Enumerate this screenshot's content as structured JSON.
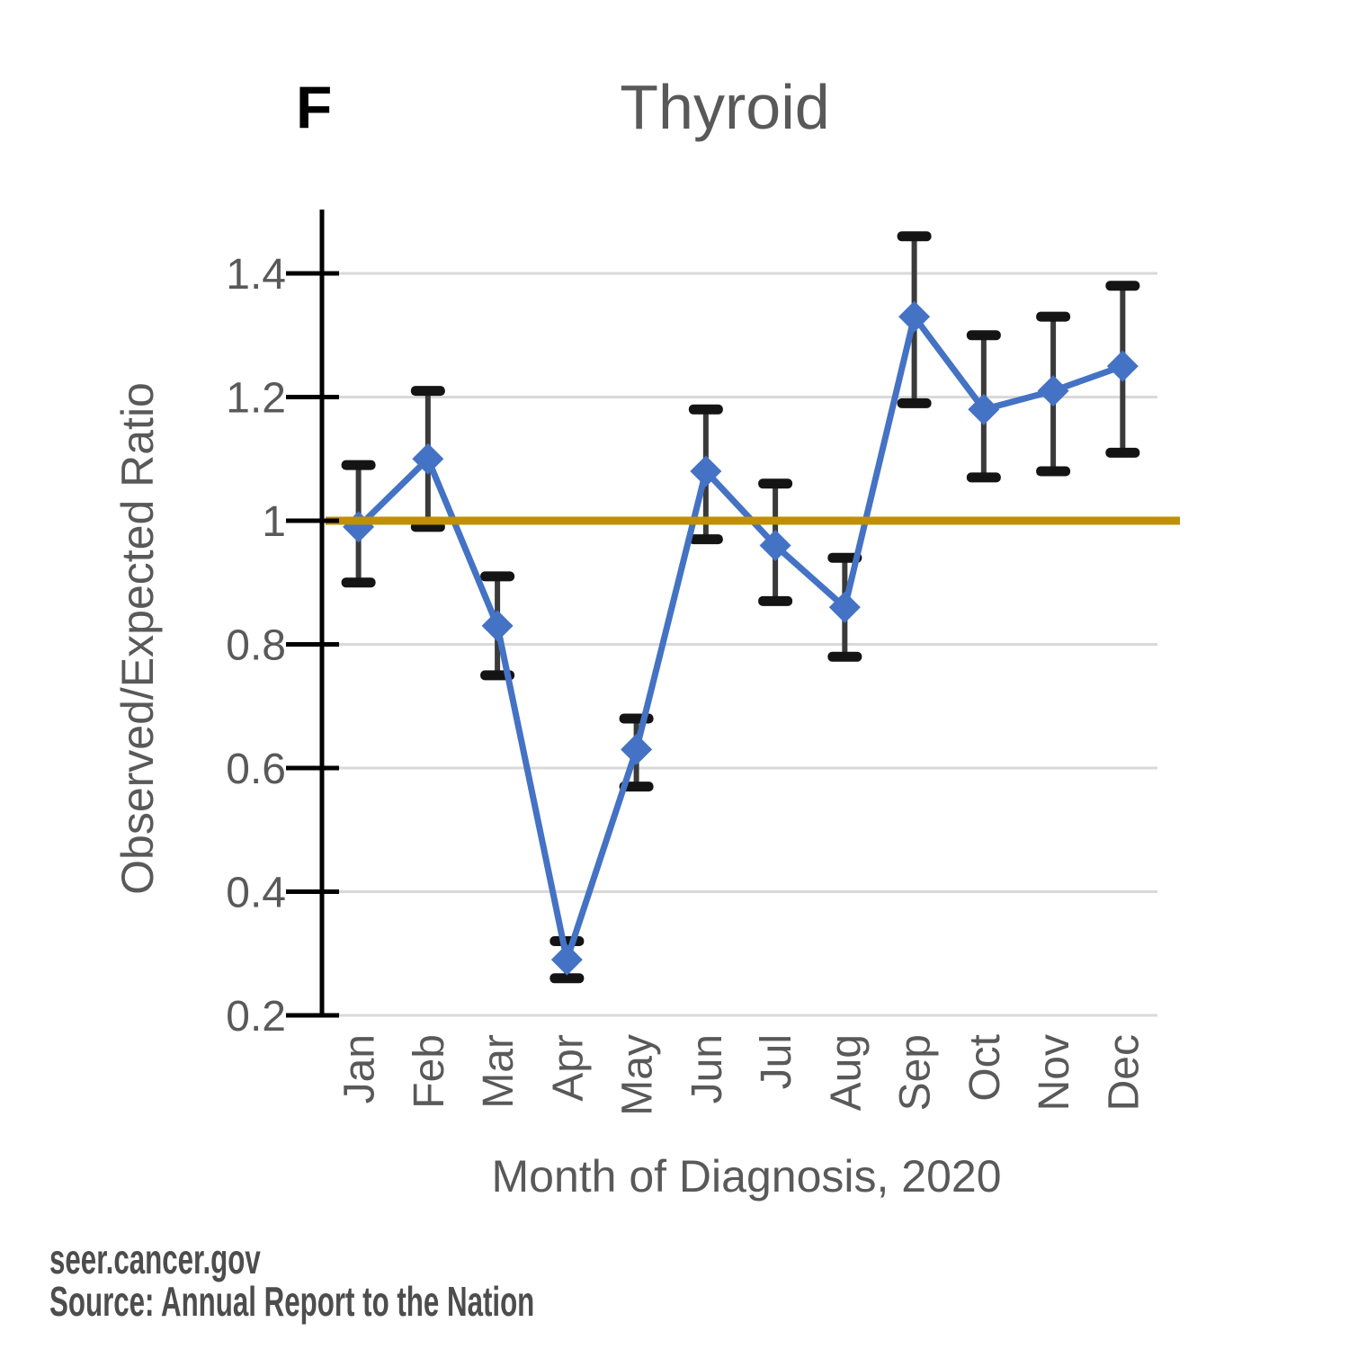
{
  "header": {
    "panel_label": "F",
    "title": "Thyroid"
  },
  "chart_data": {
    "type": "line",
    "title": "Thyroid",
    "panel_label": "F",
    "categories": [
      "Jan",
      "Feb",
      "Mar",
      "Apr",
      "May",
      "Jun",
      "Jul",
      "Aug",
      "Sep",
      "Oct",
      "Nov",
      "Dec"
    ],
    "series": [
      {
        "name": "Observed/Expected Ratio",
        "values": [
          0.99,
          1.1,
          0.83,
          0.29,
          0.63,
          1.08,
          0.96,
          0.86,
          1.33,
          1.18,
          1.21,
          1.25
        ],
        "ci_low": [
          0.9,
          0.99,
          0.75,
          0.26,
          0.57,
          0.97,
          0.87,
          0.78,
          1.19,
          1.07,
          1.08,
          1.11
        ],
        "ci_high": [
          1.09,
          1.21,
          0.91,
          0.32,
          0.68,
          1.18,
          1.06,
          0.94,
          1.46,
          1.3,
          1.33,
          1.38
        ]
      }
    ],
    "error_bars": true,
    "marker": "diamond",
    "reference_line": 1.0,
    "xlabel": "Month of Diagnosis, 2020",
    "ylabel": "Observed/Expected Ratio",
    "ylim": [
      0.2,
      1.5
    ],
    "y_ticks": [
      0.2,
      0.4,
      0.6,
      0.8,
      1.0,
      1.2,
      1.4
    ],
    "y_tick_labels": [
      "0.2",
      "0.4",
      "0.6",
      "0.8",
      "1",
      "1.2",
      "1.4"
    ],
    "grid": true,
    "legend": false
  },
  "footer": {
    "line1": "seer.cancer.gov",
    "line2": "Source: Annual Report to the Nation"
  },
  "colors": {
    "series": "#4472C4",
    "reference_line": "#BF9000",
    "error_bar_line": "#3A3A3A",
    "error_bar_cap": "#141414",
    "gridline": "#D9D9D9",
    "axis": "#000000",
    "label_text": "#595959",
    "footer_text": "#4D4D4D"
  }
}
